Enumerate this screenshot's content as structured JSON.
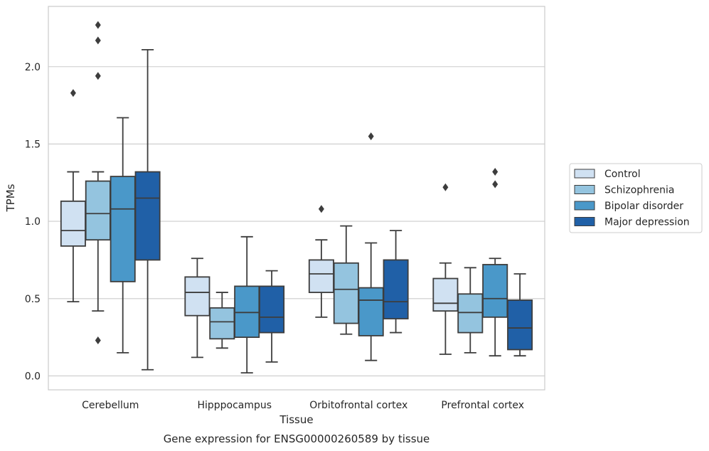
{
  "chart_data": {
    "type": "boxplot",
    "title": "Gene expression for ENSG00000260589 by tissue",
    "xlabel": "Tissue",
    "ylabel": "TPMs",
    "ylim": [
      -0.09,
      2.39
    ],
    "yticks": [
      0.0,
      0.5,
      1.0,
      1.5,
      2.0
    ],
    "ytick_labels": [
      "0.0",
      "0.5",
      "1.0",
      "1.5",
      "2.0"
    ],
    "grid": "horizontal",
    "legend_position": "outside-right",
    "categories": [
      "Cerebellum",
      "Hipppocampus",
      "Orbitofrontal cortex",
      "Prefrontal cortex"
    ],
    "series": [
      {
        "name": "Control",
        "color": "#d0e1f2",
        "boxes": [
          {
            "whisker_low": 0.48,
            "q1": 0.84,
            "median": 0.94,
            "q3": 1.13,
            "whisker_high": 1.32,
            "outliers": [
              1.83
            ]
          },
          {
            "whisker_low": 0.12,
            "q1": 0.39,
            "median": 0.54,
            "q3": 0.64,
            "whisker_high": 0.76,
            "outliers": []
          },
          {
            "whisker_low": 0.38,
            "q1": 0.54,
            "median": 0.66,
            "q3": 0.75,
            "whisker_high": 0.88,
            "outliers": [
              1.08
            ]
          },
          {
            "whisker_low": 0.14,
            "q1": 0.42,
            "median": 0.47,
            "q3": 0.63,
            "whisker_high": 0.73,
            "outliers": [
              1.22
            ]
          }
        ]
      },
      {
        "name": "Schizophrenia",
        "color": "#94c4df",
        "boxes": [
          {
            "whisker_low": 0.42,
            "q1": 0.88,
            "median": 1.05,
            "q3": 1.26,
            "whisker_high": 1.32,
            "outliers": [
              0.23,
              1.94,
              2.17,
              2.27
            ]
          },
          {
            "whisker_low": 0.18,
            "q1": 0.24,
            "median": 0.35,
            "q3": 0.44,
            "whisker_high": 0.54,
            "outliers": []
          },
          {
            "whisker_low": 0.27,
            "q1": 0.34,
            "median": 0.56,
            "q3": 0.73,
            "whisker_high": 0.97,
            "outliers": []
          },
          {
            "whisker_low": 0.15,
            "q1": 0.28,
            "median": 0.41,
            "q3": 0.53,
            "whisker_high": 0.7,
            "outliers": []
          }
        ]
      },
      {
        "name": "Bipolar disorder",
        "color": "#4a98c9",
        "boxes": [
          {
            "whisker_low": 0.15,
            "q1": 0.61,
            "median": 1.08,
            "q3": 1.29,
            "whisker_high": 1.67,
            "outliers": []
          },
          {
            "whisker_low": 0.02,
            "q1": 0.25,
            "median": 0.41,
            "q3": 0.58,
            "whisker_high": 0.9,
            "outliers": []
          },
          {
            "whisker_low": 0.1,
            "q1": 0.26,
            "median": 0.49,
            "q3": 0.57,
            "whisker_high": 0.86,
            "outliers": [
              1.55
            ]
          },
          {
            "whisker_low": 0.13,
            "q1": 0.38,
            "median": 0.5,
            "q3": 0.72,
            "whisker_high": 0.76,
            "outliers": [
              1.24,
              1.32
            ]
          }
        ]
      },
      {
        "name": "Major depression",
        "color": "#2060a7",
        "boxes": [
          {
            "whisker_low": 0.04,
            "q1": 0.75,
            "median": 1.15,
            "q3": 1.32,
            "whisker_high": 2.11,
            "outliers": []
          },
          {
            "whisker_low": 0.09,
            "q1": 0.28,
            "median": 0.38,
            "q3": 0.58,
            "whisker_high": 0.68,
            "outliers": []
          },
          {
            "whisker_low": 0.28,
            "q1": 0.37,
            "median": 0.48,
            "q3": 0.75,
            "whisker_high": 0.94,
            "outliers": []
          },
          {
            "whisker_low": 0.13,
            "q1": 0.17,
            "median": 0.31,
            "q3": 0.49,
            "whisker_high": 0.66,
            "outliers": []
          }
        ]
      }
    ]
  }
}
